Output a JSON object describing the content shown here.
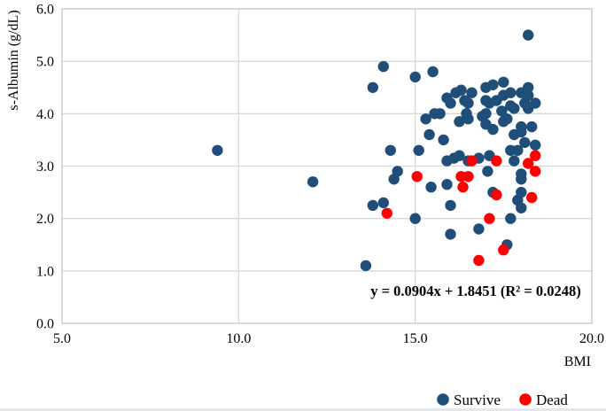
{
  "chart_data": {
    "type": "scatter",
    "title": "",
    "xlabel": "BMI",
    "ylabel": "s-Albumin (g/dL)",
    "xlim": [
      5.0,
      20.0
    ],
    "ylim": [
      0.0,
      6.0
    ],
    "x_ticks": [
      "5.0",
      "10.0",
      "15.0",
      "20.0"
    ],
    "y_ticks": [
      "0.0",
      "1.0",
      "2.0",
      "3.0",
      "4.0",
      "5.0",
      "6.0"
    ],
    "grid": true,
    "legend_position": "bottom-right",
    "trendline_label": "y = 0.0904x + 1.8451 (R² = 0.0248)",
    "colors": {
      "survive": "#1f4e79",
      "dead": "#fe0000",
      "gridline": "#d9d9d9",
      "plot_border": "#c6c6c6",
      "text": "#000000"
    },
    "series": [
      {
        "name": "Survive",
        "color": "#1f4e79",
        "points": [
          [
            9.4,
            3.3
          ],
          [
            12.1,
            2.7
          ],
          [
            13.6,
            1.1
          ],
          [
            13.8,
            2.25
          ],
          [
            14.1,
            2.3
          ],
          [
            13.8,
            4.5
          ],
          [
            14.1,
            4.9
          ],
          [
            14.3,
            3.3
          ],
          [
            14.4,
            2.75
          ],
          [
            14.5,
            2.9
          ],
          [
            15.0,
            4.7
          ],
          [
            15.0,
            2.0
          ],
          [
            15.1,
            3.3
          ],
          [
            15.3,
            3.9
          ],
          [
            15.55,
            4.0
          ],
          [
            15.4,
            3.6
          ],
          [
            15.5,
            4.8
          ],
          [
            15.7,
            4.0
          ],
          [
            15.8,
            3.5
          ],
          [
            15.45,
            2.6
          ],
          [
            15.9,
            4.3
          ],
          [
            15.9,
            3.1
          ],
          [
            15.9,
            2.65
          ],
          [
            16.0,
            4.2
          ],
          [
            16.0,
            2.25
          ],
          [
            16.0,
            1.7
          ],
          [
            16.1,
            3.15
          ],
          [
            16.15,
            4.4
          ],
          [
            16.25,
            3.2
          ],
          [
            16.25,
            3.85
          ],
          [
            16.3,
            4.45
          ],
          [
            16.4,
            4.25
          ],
          [
            16.45,
            4.0
          ],
          [
            16.5,
            4.2
          ],
          [
            16.6,
            4.4
          ],
          [
            16.5,
            3.9
          ],
          [
            16.5,
            3.1
          ],
          [
            16.8,
            3.15
          ],
          [
            16.8,
            1.8
          ],
          [
            16.9,
            3.95
          ],
          [
            17.0,
            4.5
          ],
          [
            17.0,
            4.25
          ],
          [
            17.0,
            4.0
          ],
          [
            17.0,
            3.8
          ],
          [
            17.05,
            2.9
          ],
          [
            17.1,
            4.2
          ],
          [
            17.1,
            3.2
          ],
          [
            17.2,
            4.55
          ],
          [
            17.2,
            3.7
          ],
          [
            17.2,
            2.5
          ],
          [
            17.3,
            4.25
          ],
          [
            17.45,
            4.05
          ],
          [
            17.5,
            4.6
          ],
          [
            17.5,
            4.35
          ],
          [
            17.5,
            3.85
          ],
          [
            17.6,
            3.9
          ],
          [
            17.6,
            1.5
          ],
          [
            17.7,
            4.4
          ],
          [
            17.7,
            4.15
          ],
          [
            17.7,
            3.3
          ],
          [
            17.7,
            2.0
          ],
          [
            17.8,
            4.1
          ],
          [
            17.8,
            3.6
          ],
          [
            17.8,
            3.1
          ],
          [
            17.9,
            3.3
          ],
          [
            17.9,
            2.35
          ],
          [
            18.0,
            4.4
          ],
          [
            18.0,
            3.75
          ],
          [
            18.0,
            3.65
          ],
          [
            18.0,
            2.85
          ],
          [
            18.0,
            2.75
          ],
          [
            18.0,
            2.5
          ],
          [
            18.0,
            2.2
          ],
          [
            18.1,
            4.2
          ],
          [
            18.1,
            3.45
          ],
          [
            18.2,
            5.5
          ],
          [
            18.2,
            4.5
          ],
          [
            18.2,
            4.35
          ],
          [
            18.2,
            4.1
          ],
          [
            18.3,
            3.75
          ],
          [
            18.4,
            4.2
          ],
          [
            18.4,
            3.4
          ]
        ]
      },
      {
        "name": "Dead",
        "color": "#fe0000",
        "points": [
          [
            14.2,
            2.1
          ],
          [
            15.05,
            2.8
          ],
          [
            16.3,
            2.8
          ],
          [
            16.5,
            2.8
          ],
          [
            16.35,
            2.6
          ],
          [
            16.6,
            3.1
          ],
          [
            16.8,
            1.2
          ],
          [
            17.1,
            2.0
          ],
          [
            17.3,
            3.1
          ],
          [
            17.3,
            2.45
          ],
          [
            17.5,
            1.4
          ],
          [
            18.2,
            3.05
          ],
          [
            18.3,
            2.4
          ],
          [
            18.4,
            3.2
          ],
          [
            18.4,
            2.9
          ]
        ]
      }
    ]
  },
  "legend": {
    "survive_label": "Survive",
    "dead_label": "Dead"
  }
}
